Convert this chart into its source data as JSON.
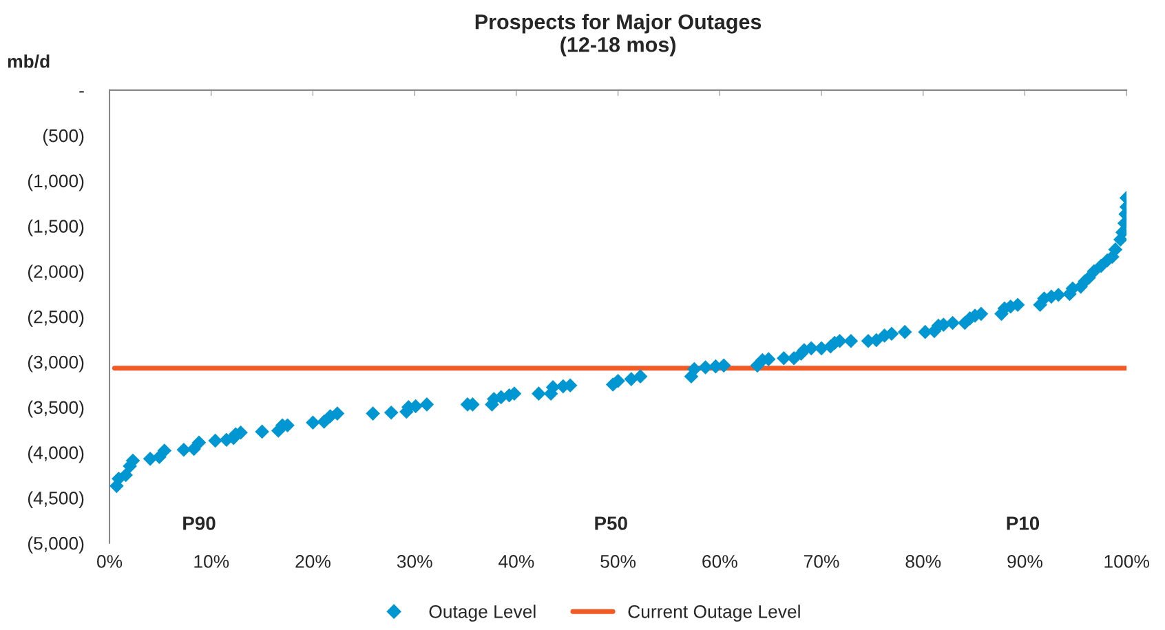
{
  "chart_data": {
    "type": "scatter",
    "title": "Prospects for Major Outages\n(12-18 mos)",
    "ylabel": "mb/d",
    "xlim": [
      0,
      100
    ],
    "ylim": [
      -5000,
      0
    ],
    "xticks": [
      {
        "value": 0,
        "label": "0%"
      },
      {
        "value": 10,
        "label": "10%"
      },
      {
        "value": 20,
        "label": "20%"
      },
      {
        "value": 30,
        "label": "30%"
      },
      {
        "value": 40,
        "label": "40%"
      },
      {
        "value": 50,
        "label": "50%"
      },
      {
        "value": 60,
        "label": "60%"
      },
      {
        "value": 70,
        "label": "70%"
      },
      {
        "value": 80,
        "label": "80%"
      },
      {
        "value": 90,
        "label": "90%"
      },
      {
        "value": 100,
        "label": "100%"
      }
    ],
    "yticks": [
      {
        "value": -5000,
        "label": "(5,000)"
      },
      {
        "value": -4500,
        "label": "(4,500)"
      },
      {
        "value": -4000,
        "label": "(4,000)"
      },
      {
        "value": -3500,
        "label": "(3,500)"
      },
      {
        "value": -3000,
        "label": "(3,000)"
      },
      {
        "value": -2500,
        "label": "(2,500)"
      },
      {
        "value": -2000,
        "label": "(2,000)"
      },
      {
        "value": -1500,
        "label": "(1,500)"
      },
      {
        "value": -1000,
        "label": "(1,000)"
      },
      {
        "value": -500,
        "label": "(500)"
      },
      {
        "value": 0,
        "label": "-"
      }
    ],
    "grid": false,
    "legend": "bottom",
    "marker": "diamond",
    "series": [
      {
        "name": "Outage Level",
        "color": "#0096d2",
        "x": [
          0.7,
          0.9,
          1.6,
          2.0,
          2.3,
          4.0,
          4.9,
          5.4,
          7.3,
          8.3,
          8.8,
          10.4,
          11.5,
          12.2,
          12.4,
          12.9,
          15.0,
          16.6,
          17.0,
          17.5,
          20.0,
          21.1,
          21.7,
          22.4,
          25.9,
          27.7,
          29.2,
          29.4,
          30.1,
          31.2,
          35.2,
          35.7,
          37.6,
          37.8,
          38.5,
          39.3,
          39.8,
          42.2,
          43.4,
          43.6,
          44.6,
          45.3,
          49.5,
          50.0,
          51.3,
          52.2,
          57.2,
          57.5,
          58.6,
          59.6,
          60.4,
          63.7,
          64.2,
          64.8,
          66.3,
          67.3,
          68.0,
          68.3,
          69.0,
          70.0,
          70.9,
          71.3,
          71.8,
          72.9,
          74.6,
          75.4,
          76.2,
          76.9,
          78.2,
          80.2,
          81.1,
          81.5,
          82.0,
          82.9,
          84.1,
          84.6,
          85.1,
          85.7,
          87.7,
          88.0,
          88.6,
          89.3,
          91.5,
          91.9,
          92.6,
          93.3,
          94.4,
          94.7,
          95.5,
          95.9,
          96.3,
          96.8,
          97.5,
          98.1,
          98.6,
          98.9,
          99.4,
          99.6,
          99.8,
          99.9,
          100,
          100
        ],
        "values": [
          -4370,
          -4290,
          -4250,
          -4150,
          -4090,
          -4070,
          -4050,
          -3980,
          -3970,
          -3960,
          -3890,
          -3870,
          -3860,
          -3840,
          -3800,
          -3780,
          -3770,
          -3760,
          -3700,
          -3700,
          -3670,
          -3660,
          -3600,
          -3570,
          -3570,
          -3560,
          -3550,
          -3500,
          -3490,
          -3470,
          -3470,
          -3470,
          -3470,
          -3410,
          -3390,
          -3370,
          -3350,
          -3350,
          -3350,
          -3280,
          -3270,
          -3260,
          -3250,
          -3210,
          -3190,
          -3160,
          -3160,
          -3080,
          -3060,
          -3050,
          -3040,
          -3040,
          -2980,
          -2970,
          -2960,
          -2960,
          -2910,
          -2870,
          -2850,
          -2850,
          -2830,
          -2790,
          -2770,
          -2770,
          -2770,
          -2760,
          -2710,
          -2690,
          -2670,
          -2670,
          -2660,
          -2600,
          -2590,
          -2570,
          -2570,
          -2520,
          -2490,
          -2470,
          -2470,
          -2410,
          -2390,
          -2370,
          -2370,
          -2300,
          -2280,
          -2260,
          -2250,
          -2190,
          -2170,
          -2110,
          -2070,
          -2000,
          -1940,
          -1880,
          -1840,
          -1760,
          -1650,
          -1570,
          -1470,
          -1370,
          -1290,
          -1190
        ]
      },
      {
        "name": "Current Outage Level",
        "type": "line",
        "color": "#f15a24",
        "marker": "none",
        "x": [
          0.5,
          100
        ],
        "values": [
          -3070,
          -3070
        ]
      }
    ],
    "annotations": [
      "P90",
      "P50",
      "P10"
    ]
  }
}
